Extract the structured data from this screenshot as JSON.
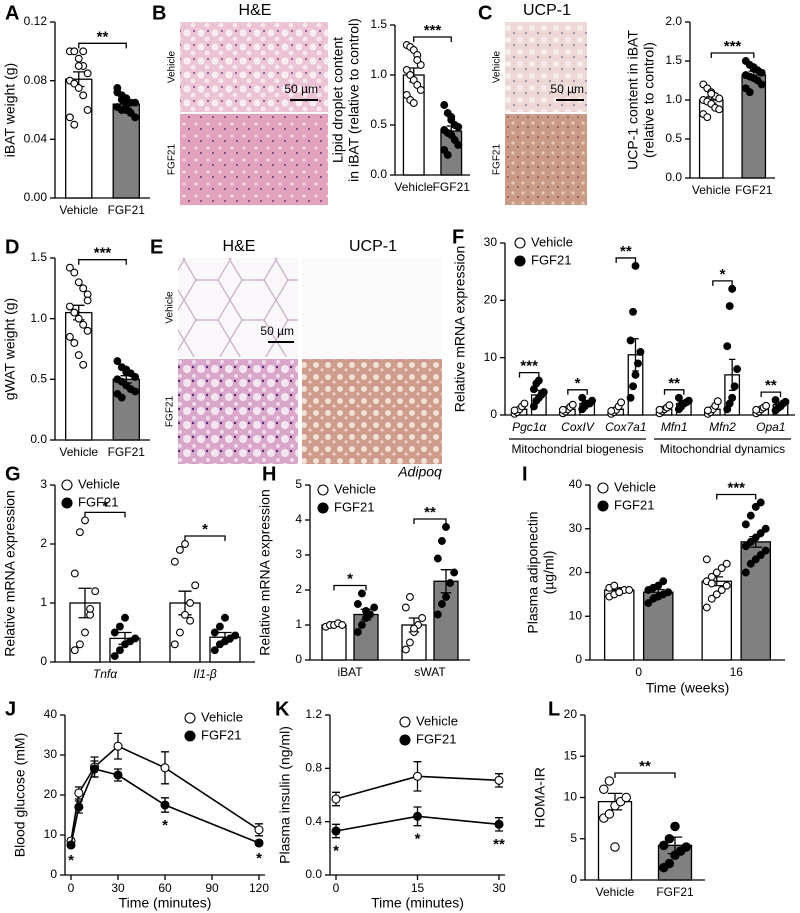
{
  "chart_data": [
    {
      "panel": "A",
      "type": "bar",
      "ylabel": "iBAT weight (g)",
      "categories": [
        "Vehicle",
        "FGF21"
      ],
      "values": [
        0.081,
        0.064
      ],
      "errors": [
        0.005,
        0.003
      ],
      "colors": [
        "#ffffff",
        "#808080"
      ],
      "marker_colors": [
        "#ffffff",
        "#000000"
      ],
      "points": [
        [
          0.1,
          0.1,
          0.095,
          0.09,
          0.085,
          0.08,
          0.078,
          0.075,
          0.07,
          0.06,
          0.055,
          0.05,
          0.09,
          0.1
        ],
        [
          0.075,
          0.07,
          0.068,
          0.065,
          0.065,
          0.062,
          0.06,
          0.06,
          0.058,
          0.055,
          0.072,
          0.067,
          0.063
        ]
      ],
      "significance": "**",
      "ylim": [
        0,
        0.12
      ],
      "yticks": [
        {
          "value": 0,
          "label": "0.00"
        },
        0.04,
        0.08,
        0.12
      ]
    },
    {
      "type": "bar",
      "ylabel": [
        "Lipid droplet content",
        "in iBAT (relative to control)"
      ],
      "categories": [
        "Vehicle",
        "FGF21"
      ],
      "values": [
        1.0,
        0.44
      ],
      "errors": [
        0.07,
        0.05
      ],
      "colors": [
        "#ffffff",
        "#808080"
      ],
      "marker_colors": [
        "#ffffff",
        "#000000"
      ],
      "points": [
        [
          1.3,
          1.28,
          1.25,
          1.2,
          1.1,
          1.05,
          1.0,
          0.95,
          0.9,
          0.85,
          0.8,
          0.75,
          0.72,
          1.15
        ],
        [
          0.7,
          0.62,
          0.58,
          0.5,
          0.48,
          0.45,
          0.42,
          0.4,
          0.35,
          0.3,
          0.25,
          0.2,
          0.55
        ]
      ],
      "significance": "***",
      "ylim": [
        0,
        1.5
      ],
      "yticks": [
        {
          "value": 0,
          "label": "0.0"
        },
        0.5,
        {
          "value": 1,
          "label": "1.0"
        },
        1.5
      ]
    },
    {
      "type": "bar",
      "ylabel": [
        "UCP-1 content in iBAT",
        "(relative to control)"
      ],
      "categories": [
        "Vehicle",
        "FGF21"
      ],
      "values": [
        1.0,
        1.32
      ],
      "errors": [
        0.04,
        0.05
      ],
      "colors": [
        "#ffffff",
        "#808080"
      ],
      "marker_colors": [
        "#ffffff",
        "#000000"
      ],
      "points": [
        [
          1.2,
          1.15,
          1.1,
          1.05,
          1.02,
          1.0,
          0.98,
          0.95,
          0.9,
          0.88,
          0.82,
          0.78,
          1.08
        ],
        [
          1.5,
          1.45,
          1.4,
          1.38,
          1.35,
          1.32,
          1.3,
          1.28,
          1.25,
          1.2,
          1.15,
          1.1,
          1.42
        ]
      ],
      "significance": "***",
      "ylim": [
        0,
        2
      ],
      "yticks": [
        {
          "value": 0,
          "label": "0.0"
        },
        0.5,
        {
          "value": 1,
          "label": "1.0"
        },
        1.5,
        {
          "value": 2,
          "label": "2.0"
        }
      ]
    },
    {
      "panel": "D",
      "type": "bar",
      "ylabel": "gWAT weight (g)",
      "categories": [
        "Vehicle",
        "FGF21"
      ],
      "values": [
        1.05,
        0.5
      ],
      "errors": [
        0.06,
        0.03
      ],
      "colors": [
        "#ffffff",
        "#808080"
      ],
      "marker_colors": [
        "#ffffff",
        "#000000"
      ],
      "points": [
        [
          1.42,
          1.38,
          1.3,
          1.25,
          1.2,
          1.1,
          1.05,
          1.0,
          0.95,
          0.9,
          0.85,
          0.8,
          0.7,
          0.62,
          1.15
        ],
        [
          0.65,
          0.6,
          0.58,
          0.55,
          0.52,
          0.5,
          0.48,
          0.45,
          0.42,
          0.4,
          0.38,
          0.35,
          0.56
        ]
      ],
      "significance": "***",
      "ylim": [
        0,
        1.5
      ],
      "yticks": [
        {
          "value": 0,
          "label": "0.0"
        },
        0.5,
        {
          "value": 1,
          "label": "1.0"
        },
        1.5
      ]
    },
    {
      "panel": "F",
      "type": "bar",
      "ylabel": "Relative mRNA expression",
      "categories": [
        "Pgc1α",
        "CoxIV",
        "Cox7a1",
        "Mfn1",
        "Mfn2",
        "Opa1"
      ],
      "group_labels": [
        "Mitochondrial biogenesis",
        "Mitochondrial dynamics"
      ],
      "series": [
        {
          "name": "Vehicle",
          "color": "#ffffff",
          "marker_color": "#ffffff",
          "values": [
            1,
            1,
            1,
            1,
            1,
            1
          ],
          "errors": [
            0.3,
            0.3,
            0.3,
            0.3,
            0.3,
            0.3
          ],
          "points": [
            [
              0.2,
              0.5,
              1,
              1.5,
              2,
              0.8
            ],
            [
              0.3,
              0.6,
              1,
              1.4,
              1.8,
              0.9
            ],
            [
              0.2,
              0.5,
              0.9,
              1.5,
              2.2,
              0.7
            ],
            [
              0.3,
              0.7,
              1,
              1.3,
              1.7,
              0.9
            ],
            [
              0.2,
              0.5,
              1,
              1.6,
              2.4,
              0.8
            ],
            [
              0.3,
              0.6,
              1,
              1.3,
              1.6,
              0.9
            ]
          ]
        },
        {
          "name": "FGF21",
          "color": "#ffffff",
          "marker_color": "#000000",
          "values": [
            3.5,
            2,
            10.5,
            2,
            7,
            1.8
          ],
          "errors": [
            0.8,
            0.4,
            2.8,
            0.4,
            2.7,
            0.3
          ],
          "points": [
            [
              1.5,
              2.5,
              3,
              3.5,
              4,
              4.5,
              5.5,
              6
            ],
            [
              1,
              1.5,
              2,
              2,
              2.5,
              3,
              1.8
            ],
            [
              3,
              5,
              7,
              9,
              11,
              13,
              18,
              26
            ],
            [
              1,
              1.5,
              2,
              2.2,
              2.5,
              3,
              1.8
            ],
            [
              1,
              2,
              3,
              5,
              8,
              12,
              19,
              22
            ],
            [
              0.8,
              1.2,
              1.5,
              2,
              2.3,
              2.6
            ]
          ]
        }
      ],
      "significance": [
        "***",
        "*",
        "**",
        "**",
        "*",
        "**"
      ],
      "ylim": [
        0,
        30
      ],
      "yticks": [
        0,
        10,
        20,
        30
      ]
    },
    {
      "panel": "G",
      "type": "bar",
      "ylabel": "Relative mRNA expression",
      "categories": [
        "Tnfα",
        "Il1-β"
      ],
      "series": [
        {
          "name": "Vehicle",
          "color": "#ffffff",
          "marker_color": "#ffffff",
          "values": [
            1.0,
            1.0
          ],
          "errors": [
            0.25,
            0.2
          ],
          "points": [
            [
              0.2,
              0.3,
              0.5,
              0.8,
              1.2,
              1.5,
              2.2,
              2.4,
              0.9
            ],
            [
              0.3,
              0.5,
              0.8,
              1.0,
              1.3,
              1.7,
              1.9,
              2.0,
              0.7
            ]
          ]
        },
        {
          "name": "FGF21",
          "color": "#ffffff",
          "marker_color": "#000000",
          "values": [
            0.4,
            0.42
          ],
          "errors": [
            0.1,
            0.08
          ],
          "points": [
            [
              0.1,
              0.2,
              0.3,
              0.35,
              0.4,
              0.5,
              0.6,
              0.75
            ],
            [
              0.2,
              0.3,
              0.35,
              0.4,
              0.45,
              0.5,
              0.6,
              0.75
            ]
          ]
        }
      ],
      "significance": [
        "*",
        "*"
      ],
      "ylim": [
        0,
        3
      ],
      "yticks": [
        0,
        1,
        2,
        3
      ]
    },
    {
      "panel": "H",
      "type": "bar",
      "title": "Adipoq",
      "ylabel": "Relative mRNA expression",
      "categories": [
        "iBAT",
        "sWAT"
      ],
      "series": [
        {
          "name": "Vehicle",
          "color": "#ffffff",
          "marker_color": "#ffffff",
          "values": [
            1.0,
            1.0
          ],
          "errors": [
            0.03,
            0.2
          ],
          "points": [
            [
              0.95,
              1.0,
              1.0,
              1.05,
              1.0
            ],
            [
              0.3,
              0.5,
              0.8,
              1.0,
              1.2,
              1.5,
              1.8,
              0.9
            ]
          ]
        },
        {
          "name": "FGF21",
          "color": "#808080",
          "marker_color": "#000000",
          "values": [
            1.3,
            2.25
          ],
          "errors": [
            0.15,
            0.33
          ],
          "points": [
            [
              0.8,
              1.0,
              1.2,
              1.3,
              1.5,
              1.6,
              1.9,
              1.4
            ],
            [
              1.3,
              1.6,
              1.8,
              2.2,
              2.5,
              2.9,
              3.4,
              3.8
            ]
          ]
        }
      ],
      "significance": [
        "*",
        "**"
      ],
      "ylim": [
        0,
        5
      ],
      "yticks": [
        0,
        1,
        2,
        3,
        4,
        5
      ]
    },
    {
      "panel": "I",
      "type": "bar",
      "ylabel": [
        "Plasma adiponectin",
        "(µg/ml)"
      ],
      "xlabel": "Time (weeks)",
      "categories": [
        "0",
        "16"
      ],
      "series": [
        {
          "name": "Vehicle",
          "color": "#ffffff",
          "marker_color": "#ffffff",
          "values": [
            16,
            18
          ],
          "errors": [
            0.5,
            1
          ],
          "points": [
            [
              14.5,
              15,
              15.5,
              16,
              16,
              16.5,
              17,
              15.5
            ],
            [
              12,
              14,
              15,
              16,
              17,
              18,
              19,
              20,
              21,
              22,
              23,
              17.5
            ]
          ]
        },
        {
          "name": "FGF21",
          "color": "#808080",
          "marker_color": "#000000",
          "values": [
            15.5,
            27
          ],
          "errors": [
            0.6,
            1.2
          ],
          "points": [
            [
              13,
              14,
              14.5,
              15,
              15.5,
              16,
              16.5,
              17,
              18
            ],
            [
              20,
              22,
              23,
              24,
              25,
              26,
              27,
              28,
              29,
              30,
              31,
              33,
              35,
              36
            ]
          ]
        }
      ],
      "significance": [
        null,
        "***"
      ],
      "ylim": [
        0,
        40
      ],
      "yticks": [
        0,
        10,
        20,
        30,
        40
      ]
    },
    {
      "panel": "J",
      "type": "line",
      "ylabel": "Blood glucose (mM)",
      "xlabel": "Time (minutes)",
      "x": [
        0,
        5,
        15,
        30,
        60,
        120
      ],
      "series": [
        {
          "name": "Vehicle",
          "marker_color": "#ffffff",
          "values": [
            8.5,
            20.5,
            27,
            32.2,
            26.8,
            11.3
          ],
          "errors": [
            0.5,
            1.5,
            2.5,
            3.2,
            4,
            1.5
          ]
        },
        {
          "name": "FGF21",
          "marker_color": "#000000",
          "values": [
            7.5,
            17,
            26.5,
            25,
            17.5,
            8
          ],
          "errors": [
            0.5,
            1.5,
            2,
            1.5,
            1.8,
            0.5
          ],
          "significance": [
            "*",
            null,
            null,
            null,
            "*",
            "*"
          ]
        }
      ],
      "xlim": [
        0,
        120
      ],
      "xticks": [
        0,
        30,
        60,
        90,
        120
      ],
      "ylim": [
        0,
        40
      ],
      "yticks": [
        0,
        10,
        20,
        30,
        40
      ]
    },
    {
      "panel": "K",
      "type": "line",
      "ylabel": "Plasma insulin (ng/ml)",
      "xlabel": "Time (minutes)",
      "x": [
        0,
        15,
        30
      ],
      "series": [
        {
          "name": "Vehicle",
          "marker_color": "#ffffff",
          "values": [
            0.57,
            0.74,
            0.71
          ],
          "errors": [
            0.05,
            0.11,
            0.05
          ]
        },
        {
          "name": "FGF21",
          "marker_color": "#000000",
          "values": [
            0.33,
            0.44,
            0.38
          ],
          "errors": [
            0.05,
            0.07,
            0.05
          ],
          "significance": [
            "*",
            "*",
            "**"
          ]
        }
      ],
      "xlim": [
        0,
        30
      ],
      "xticks": [
        0,
        15,
        30
      ],
      "ylim": [
        0,
        1.2
      ],
      "yticks": [
        {
          "value": 0,
          "label": "0.0"
        },
        0.4,
        0.8,
        1.2
      ]
    },
    {
      "panel": "L",
      "type": "bar",
      "ylabel": "HOMA-IR",
      "categories": [
        "Vehicle",
        "FGF21"
      ],
      "values": [
        9.5,
        4.2
      ],
      "errors": [
        1.0,
        1.0
      ],
      "colors": [
        "#ffffff",
        "#808080"
      ],
      "marker_colors": [
        "#ffffff",
        "#000000"
      ],
      "points": [
        [
          7.5,
          8,
          9,
          9.5,
          10,
          11,
          12,
          4
        ],
        [
          1.5,
          2,
          3,
          3.5,
          4,
          4.2,
          5,
          6.5
        ]
      ],
      "significance": "**",
      "ylim": [
        0,
        20
      ],
      "yticks": [
        0,
        5,
        10,
        15,
        20
      ]
    }
  ],
  "images": [
    {
      "panel": "B",
      "titles": [
        "H&E"
      ],
      "rows": [
        "Vehicle",
        "FGF21"
      ],
      "scale": "50 µm"
    },
    {
      "panel": "C",
      "titles": [
        "UCP-1"
      ],
      "rows": [
        "Vehicle",
        "FGF21"
      ],
      "scale": "50 µm"
    },
    {
      "panel": "E",
      "titles": [
        "H&E",
        "UCP-1"
      ],
      "rows": [
        "Vehicle",
        "FGF21"
      ],
      "scale": "50 µm"
    }
  ]
}
